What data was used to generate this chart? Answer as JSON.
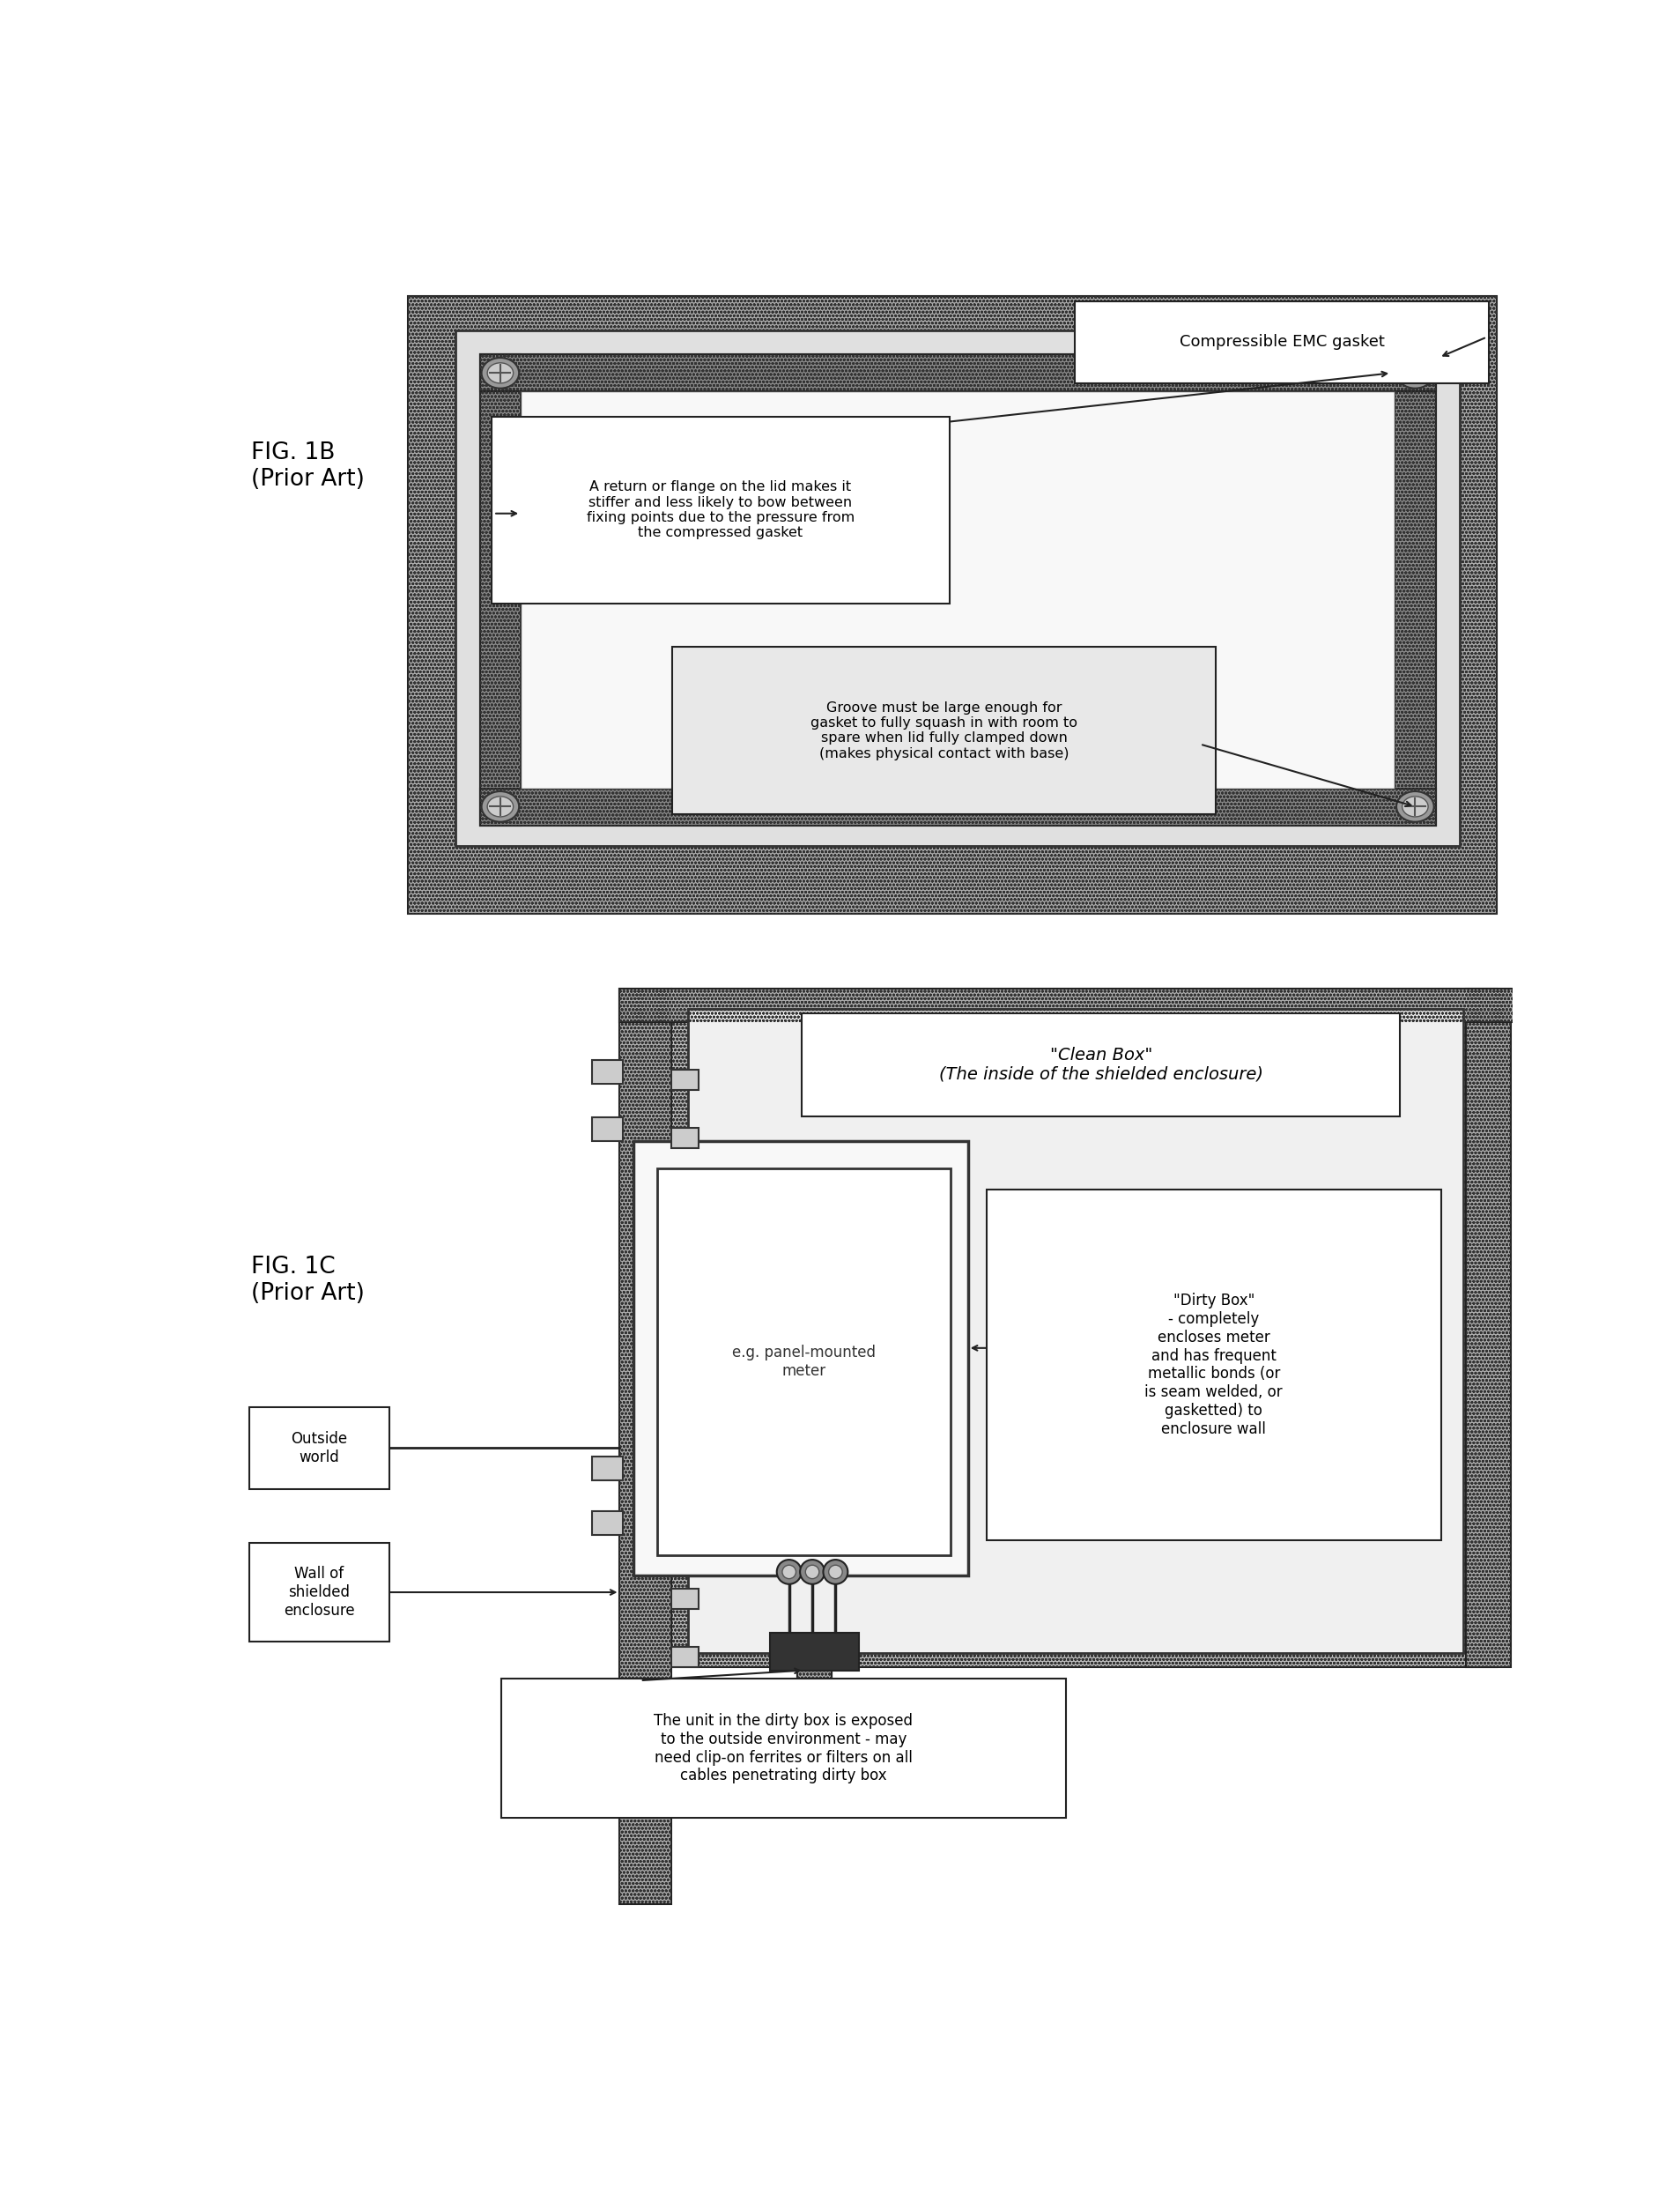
{
  "fig_width": 19.08,
  "fig_height": 24.82,
  "bg_color": "#ffffff",
  "fig1b_label": "FIG. 1B\n(Prior Art)",
  "fig1c_label": "FIG. 1C\n(Prior Art)",
  "callout1_text": "Compressible EMC gasket",
  "callout2_text": "A return or flange on the lid makes it\nstiffer and less likely to bow between\nfixing points due to the pressure from\nthe compressed gasket",
  "callout3_text": "Groove must be large enough for\ngasket to fully squash in with room to\nspare when lid fully clamped down\n(makes physical contact with base)",
  "clean_box_text": "\"Clean Box\"\n(The inside of the shielded enclosure)",
  "dirty_box_text": "\"Dirty Box\"\n- completely\nencloses meter\nand has frequent\nmetallic bonds (or\nis seam welded, or\ngasketted) to\nenclosure wall",
  "outside_world_text": "Outside\nworld",
  "wall_text": "Wall of\nshielded\nenclosure",
  "meter_text": "e.g. panel-mounted\nmeter",
  "bottom_callout_text": "The unit in the dirty box is exposed\nto the outside environment - may\nneed clip-on ferrites or filters on all\ncables penetrating dirty box"
}
